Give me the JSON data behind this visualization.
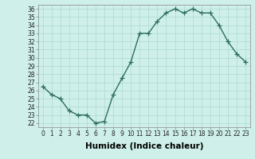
{
  "x": [
    0,
    1,
    2,
    3,
    4,
    5,
    6,
    7,
    8,
    9,
    10,
    11,
    12,
    13,
    14,
    15,
    16,
    17,
    18,
    19,
    20,
    21,
    22,
    23
  ],
  "y": [
    26.5,
    25.5,
    25.0,
    23.5,
    23.0,
    23.0,
    22.0,
    22.2,
    25.5,
    27.5,
    29.5,
    33.0,
    33.0,
    34.5,
    35.5,
    36.0,
    35.5,
    36.0,
    35.5,
    35.5,
    34.0,
    32.0,
    30.5,
    29.5
  ],
  "line_color": "#2d6e5e",
  "marker": "+",
  "markersize": 4,
  "linewidth": 1.0,
  "xlabel": "Humidex (Indice chaleur)",
  "bg_color": "#cff0ea",
  "grid_color": "#aad8d0",
  "xlim": [
    -0.5,
    23.5
  ],
  "ylim": [
    21.5,
    36.5
  ],
  "yticks": [
    22,
    23,
    24,
    25,
    26,
    27,
    28,
    29,
    30,
    31,
    32,
    33,
    34,
    35,
    36
  ],
  "xtick_labels": [
    "0",
    "1",
    "2",
    "3",
    "4",
    "5",
    "6",
    "7",
    "8",
    "9",
    "10",
    "11",
    "12",
    "13",
    "14",
    "15",
    "16",
    "17",
    "18",
    "19",
    "20",
    "21",
    "22",
    "23"
  ],
  "tick_fontsize": 5.5,
  "xlabel_fontsize": 7.5,
  "xlabel_fontweight": "bold"
}
